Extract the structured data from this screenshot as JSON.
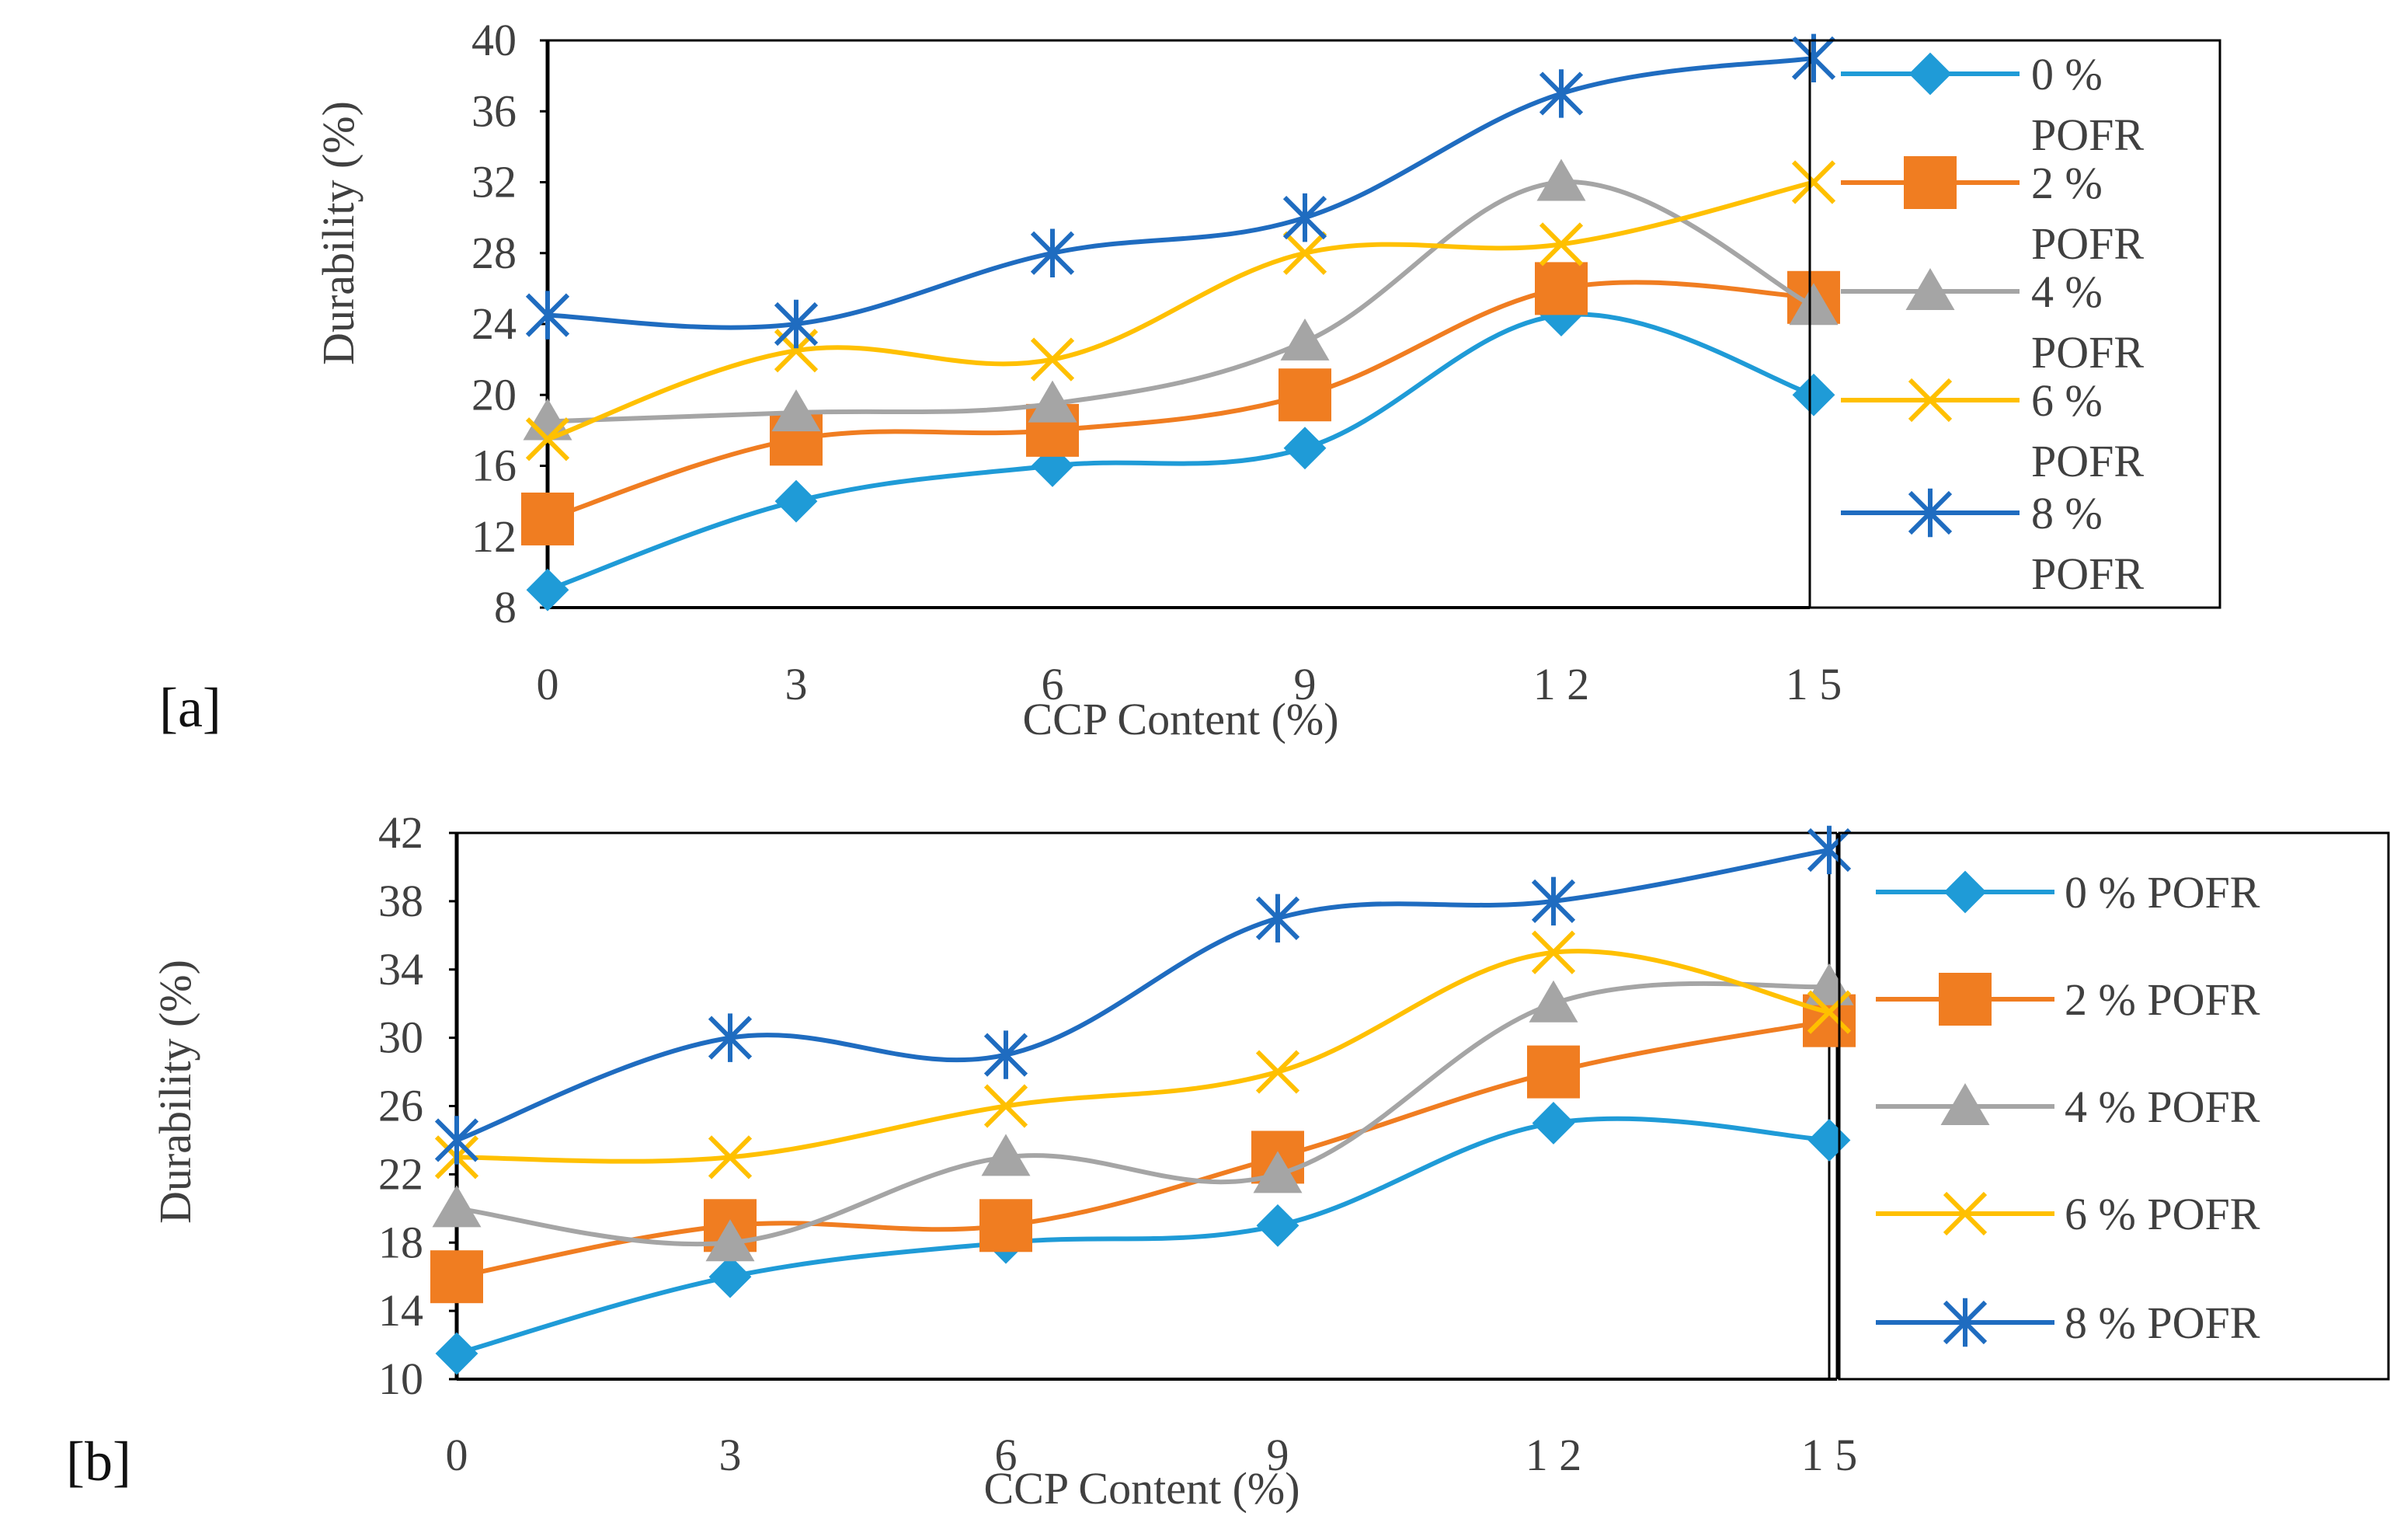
{
  "figure": {
    "panels": [
      {
        "label": "[a]",
        "chart_data": {
          "type": "line",
          "x": [
            0,
            3,
            6,
            9,
            12,
            15
          ],
          "xtick_labels": [
            "0",
            "3",
            "6",
            "9",
            "1 2",
            "1 5"
          ],
          "xlabel": "CCP Content (%)",
          "ylabel": "Durability  (%)",
          "ylim": [
            8,
            40
          ],
          "yticks": [
            8,
            12,
            16,
            20,
            24,
            28,
            32,
            36,
            40
          ],
          "grid": false,
          "legend_position": "right",
          "series": [
            {
              "name": "0 % POFR",
              "legend_lines": [
                "0 %",
                "POFR"
              ],
              "color": "#1f9bd7",
              "marker": "diamond",
              "values": [
                9,
                14,
                16,
                17,
                24.5,
                20
              ]
            },
            {
              "name": "2 % POFR",
              "legend_lines": [
                "2 %",
                "POFR"
              ],
              "color": "#f07d21",
              "marker": "square",
              "values": [
                13,
                17.5,
                18,
                20,
                26,
                25.5
              ]
            },
            {
              "name": "4 % POFR",
              "legend_lines": [
                "4 %",
                "POFR"
              ],
              "color": "#a5a5a5",
              "marker": "triangle",
              "values": [
                18.5,
                19,
                19.5,
                23,
                32,
                25
              ]
            },
            {
              "name": "6 % POFR",
              "legend_lines": [
                "6 %",
                "POFR"
              ],
              "color": "#ffc000",
              "marker": "x",
              "values": [
                17.5,
                22.5,
                22,
                28,
                28.5,
                32
              ]
            },
            {
              "name": "8 % POFR",
              "legend_lines": [
                "8 %",
                "POFR"
              ],
              "color": "#1f6cc0",
              "marker": "asterisk",
              "values": [
                24.5,
                24,
                28,
                30,
                37,
                39
              ]
            }
          ]
        }
      },
      {
        "label": "[b]",
        "chart_data": {
          "type": "line",
          "x": [
            0,
            3,
            6,
            9,
            12,
            15
          ],
          "xtick_labels": [
            "0",
            "3",
            "6",
            "9",
            "1 2",
            "1 5"
          ],
          "xlabel": "CCP Content (%)",
          "ylabel": "Durability  (%)",
          "ylim": [
            10,
            42
          ],
          "yticks": [
            10,
            14,
            18,
            22,
            26,
            30,
            34,
            38,
            42
          ],
          "grid": false,
          "legend_position": "right",
          "series": [
            {
              "name": "0 % POFR",
              "legend_lines": [
                "0 % POFR"
              ],
              "color": "#1f9bd7",
              "marker": "diamond",
              "values": [
                11.5,
                16,
                18,
                19,
                25,
                24
              ]
            },
            {
              "name": "2 % POFR",
              "legend_lines": [
                "2 % POFR"
              ],
              "color": "#f07d21",
              "marker": "square",
              "values": [
                16,
                19,
                19,
                23,
                28,
                31
              ]
            },
            {
              "name": "4 % POFR",
              "legend_lines": [
                "4 % POFR"
              ],
              "color": "#a5a5a5",
              "marker": "triangle",
              "values": [
                20,
                18,
                23,
                22,
                32,
                33
              ]
            },
            {
              "name": "6 % POFR",
              "legend_lines": [
                "6 % POFR"
              ],
              "color": "#ffc000",
              "marker": "x",
              "values": [
                23,
                23,
                26,
                28,
                35,
                31.5
              ]
            },
            {
              "name": "8 % POFR",
              "legend_lines": [
                "8 % POFR"
              ],
              "color": "#1f6cc0",
              "marker": "asterisk",
              "values": [
                24,
                30,
                29,
                37,
                38,
                41
              ]
            }
          ]
        }
      }
    ]
  }
}
